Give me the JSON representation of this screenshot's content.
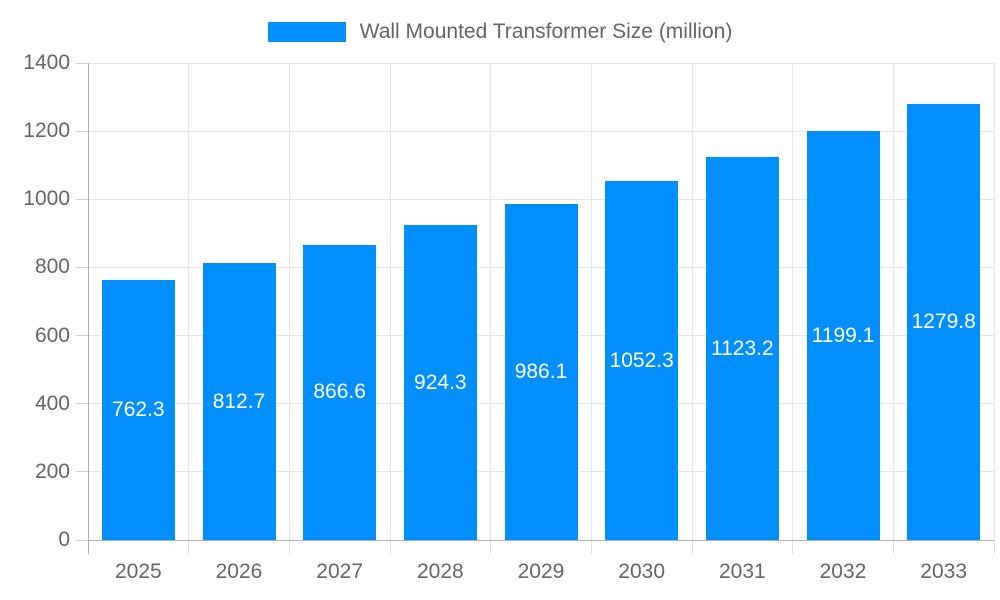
{
  "legend": {
    "label": "Wall Mounted Transformer Size (million)",
    "swatch_color": "#008FFB"
  },
  "chart_data": {
    "type": "bar",
    "title": "Wall Mounted Transformer Size (million)",
    "categories": [
      "2025",
      "2026",
      "2027",
      "2028",
      "2029",
      "2030",
      "2031",
      "2032",
      "2033"
    ],
    "values": [
      762.3,
      812.7,
      866.6,
      924.3,
      986.1,
      1052.3,
      1123.2,
      1199.1,
      1279.8
    ],
    "data_labels": [
      "762.3",
      "812.7",
      "866.6",
      "924.3",
      "986.1",
      "1052.3",
      "1123.2",
      "1199.1",
      "1279.8"
    ],
    "xlabel": "",
    "ylabel": "",
    "ylim": [
      0,
      1400
    ],
    "yticks": [
      0,
      200,
      400,
      600,
      800,
      1000,
      1200,
      1400
    ],
    "grid": true,
    "legend_position": "top",
    "bar_color": "#008FFB",
    "data_label_color": "#ffffff",
    "axis_text_color": "#666666"
  }
}
